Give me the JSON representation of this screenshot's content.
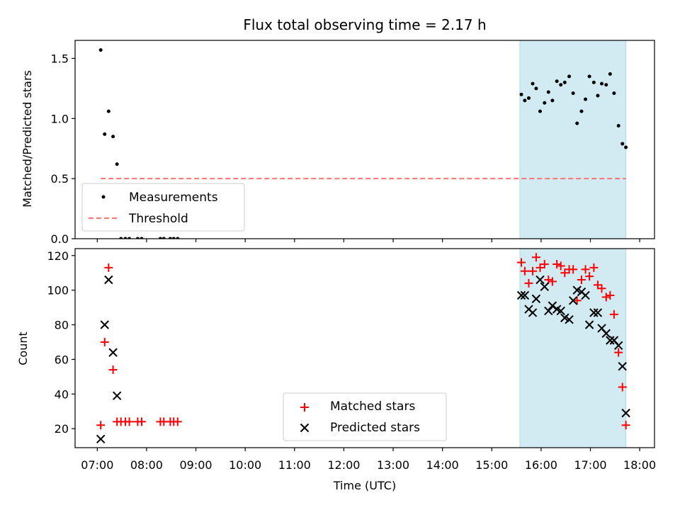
{
  "chart_data": {
    "title": "Flux total observing time = 2.17 h",
    "xlabel": "Time (UTC)",
    "x_ticks": [
      "07:00",
      "08:00",
      "09:00",
      "10:00",
      "11:00",
      "12:00",
      "13:00",
      "14:00",
      "15:00",
      "16:00",
      "17:00",
      "18:00"
    ],
    "x_range_hours": [
      6.55,
      18.3
    ],
    "shaded_region_hours": [
      15.57,
      17.72
    ],
    "shaded_color": "#add8e6",
    "panels": [
      {
        "type": "scatter",
        "ylabel": "Matched/Predicted stars",
        "ylim": [
          0,
          1.65
        ],
        "y_ticks": [
          "0.0",
          "0.5",
          "1.0",
          "1.5"
        ],
        "legend_position": "lower-left",
        "threshold": {
          "name": "Threshold",
          "value": 0.5,
          "x_range_hours": [
            7.07,
            17.72
          ],
          "color": "#ff7373"
        },
        "series": [
          {
            "name": "Measurements",
            "marker": "dot",
            "color": "#000000",
            "x": [
              7.07,
              7.15,
              7.23,
              7.32,
              7.4,
              7.48,
              7.57,
              7.65,
              7.82,
              7.9,
              8.28,
              8.35,
              8.48,
              8.55,
              8.63,
              15.6,
              15.67,
              15.75,
              15.83,
              15.9,
              15.98,
              16.07,
              16.15,
              16.23,
              16.32,
              16.4,
              16.48,
              16.57,
              16.65,
              16.73,
              16.82,
              16.9,
              16.98,
              17.07,
              17.15,
              17.23,
              17.32,
              17.4,
              17.48,
              17.57,
              17.65,
              17.72
            ],
            "y": [
              1.57,
              0.87,
              1.06,
              0.85,
              0.62,
              0.0,
              0.0,
              0.0,
              0.0,
              0.0,
              0.0,
              0.0,
              0.0,
              0.0,
              0.0,
              1.2,
              1.15,
              1.17,
              1.29,
              1.25,
              1.06,
              1.13,
              1.22,
              1.15,
              1.31,
              1.28,
              1.3,
              1.35,
              1.21,
              0.96,
              1.06,
              1.16,
              1.35,
              1.3,
              1.19,
              1.29,
              1.28,
              1.37,
              1.21,
              0.94,
              0.79,
              0.76
            ]
          }
        ]
      },
      {
        "type": "scatter",
        "ylabel": "Count",
        "ylim": [
          9,
          124
        ],
        "y_ticks": [
          "20",
          "40",
          "60",
          "80",
          "100",
          "120"
        ],
        "legend_position": "lower-center",
        "series": [
          {
            "name": "Matched stars",
            "marker": "plus",
            "color": "#ff0000",
            "x": [
              7.07,
              7.15,
              7.23,
              7.32,
              7.4,
              7.48,
              7.57,
              7.65,
              7.82,
              7.9,
              8.28,
              8.35,
              8.48,
              8.55,
              8.63,
              15.6,
              15.67,
              15.75,
              15.83,
              15.9,
              15.98,
              16.07,
              16.15,
              16.23,
              16.32,
              16.4,
              16.48,
              16.57,
              16.65,
              16.73,
              16.82,
              16.9,
              16.98,
              17.07,
              17.15,
              17.23,
              17.32,
              17.4,
              17.48,
              17.57,
              17.65,
              17.72
            ],
            "y": [
              22,
              70,
              113,
              54,
              24,
              24,
              24,
              24,
              24,
              24,
              24,
              24,
              24,
              24,
              24,
              116,
              111,
              104,
              111,
              119,
              113,
              115,
              106,
              105,
              115,
              114,
              110,
              112,
              112,
              94,
              106,
              112,
              108,
              113,
              103,
              101,
              96,
              97,
              86,
              64,
              44,
              22
            ]
          },
          {
            "name": "Predicted stars",
            "marker": "x",
            "color": "#000000",
            "x": [
              7.07,
              7.15,
              7.23,
              7.32,
              7.4,
              15.6,
              15.67,
              15.75,
              15.83,
              15.9,
              15.98,
              16.07,
              16.15,
              16.23,
              16.32,
              16.4,
              16.48,
              16.57,
              16.65,
              16.73,
              16.82,
              16.9,
              16.98,
              17.07,
              17.15,
              17.23,
              17.32,
              17.4,
              17.48,
              17.57,
              17.65,
              17.72
            ],
            "y": [
              14,
              80,
              106,
              64,
              39,
              97,
              97,
              89,
              87,
              95,
              106,
              102,
              88,
              91,
              89,
              88,
              84,
              83,
              94,
              100,
              99,
              97,
              80,
              87,
              87,
              78,
              75,
              71,
              71,
              68,
              56,
              29
            ]
          }
        ]
      }
    ]
  }
}
